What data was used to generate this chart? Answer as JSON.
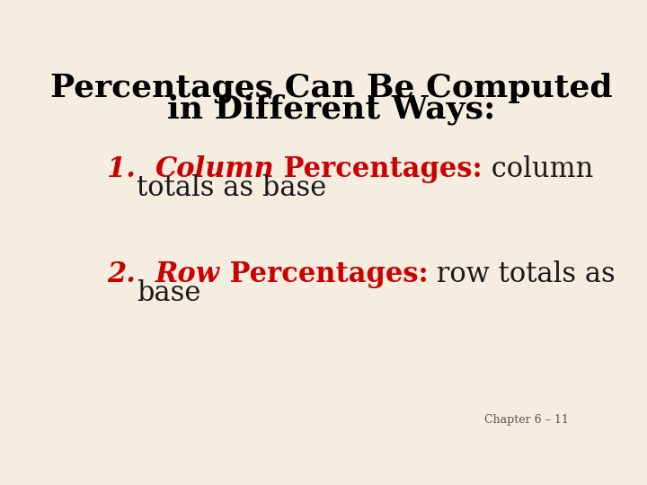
{
  "background_color": "#f5ede0",
  "title_line1": "Percentages Can Be Computed",
  "title_line2": "in Different Ways:",
  "title_color": "#000000",
  "title_fontsize": 26,
  "red_color": "#cc0000",
  "black_color": "#1a1a1a",
  "item_fontsize": 22,
  "footnote": "Chapter 6 – 11",
  "footnote_color": "#555555",
  "footnote_fontsize": 9
}
